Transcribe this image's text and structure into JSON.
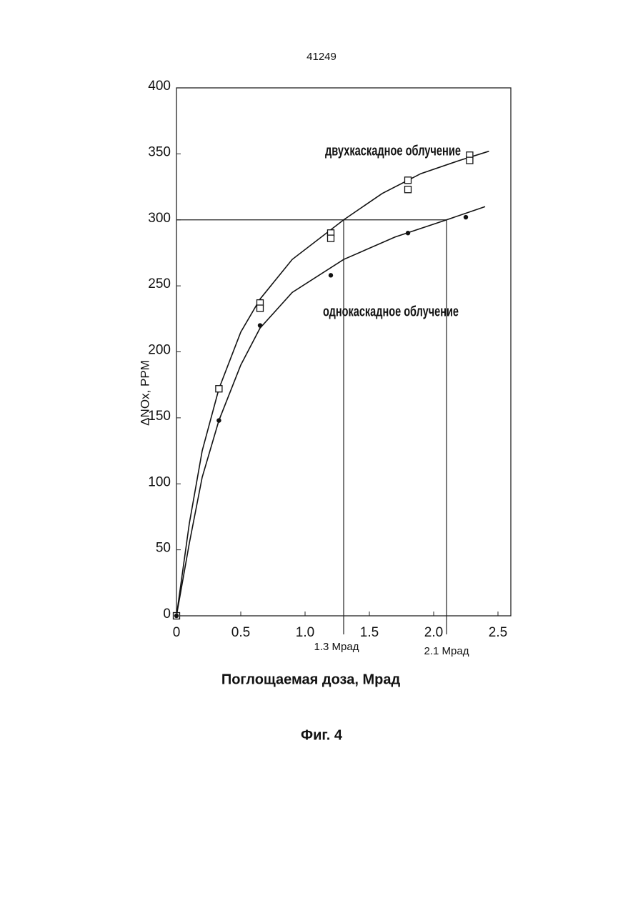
{
  "page_number": "41249",
  "caption": "Фиг. 4",
  "chart_data": {
    "type": "scatter",
    "x_label": "Поглощаемая доза, Мрад",
    "y_label": "ΔNOx, PPM",
    "xlim": [
      0,
      2.6
    ],
    "ylim": [
      0,
      400
    ],
    "xticks": [
      0,
      0.5,
      {
        "value": 1,
        "label": "1.0"
      },
      1.5,
      {
        "value": 2,
        "label": "2.0"
      },
      2.5
    ],
    "yticks": [
      0,
      50,
      100,
      150,
      200,
      250,
      300,
      350,
      400
    ],
    "series": [
      {
        "name": "двухкаскадное облучение",
        "marker": "square",
        "color": "#111111",
        "x": [
          0,
          0.33,
          0.65,
          0.65,
          1.2,
          1.2,
          1.8,
          1.8,
          2.28,
          2.28
        ],
        "values": [
          0,
          172,
          237,
          233,
          290,
          286,
          330,
          323,
          349,
          345
        ],
        "fit": {
          "x": [
            0,
            0.1,
            0.2,
            0.33,
            0.5,
            0.65,
            0.9,
            1.3,
            1.6,
            1.9,
            2.2,
            2.43
          ],
          "values": [
            0,
            70,
            125,
            172,
            215,
            240,
            270,
            300,
            320,
            335,
            345,
            352
          ]
        }
      },
      {
        "name": "однокаскадное облучение",
        "marker": "dot",
        "color": "#111111",
        "x": [
          0,
          0.33,
          0.65,
          1.2,
          1.8,
          2.25
        ],
        "values": [
          0,
          148,
          220,
          258,
          290,
          302
        ],
        "fit": {
          "x": [
            0,
            0.1,
            0.2,
            0.33,
            0.5,
            0.65,
            0.9,
            1.3,
            1.7,
            2.1,
            2.4
          ],
          "values": [
            0,
            55,
            105,
            148,
            190,
            218,
            245,
            270,
            287,
            300,
            310
          ]
        }
      }
    ],
    "reference": {
      "y": 300,
      "x": [
        {
          "value": 1.3,
          "label": "1.3 Мрад"
        },
        {
          "value": 2.1,
          "label": "2.1 Мрад"
        }
      ]
    }
  }
}
